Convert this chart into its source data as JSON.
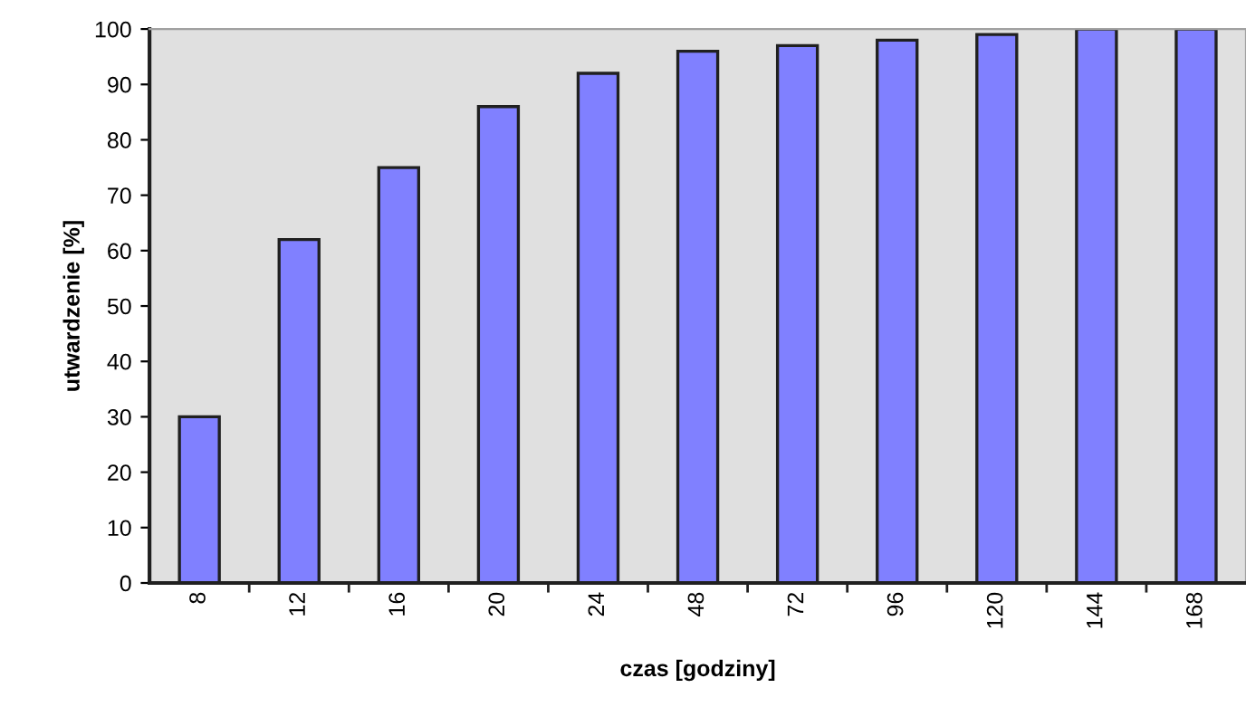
{
  "chart_data": {
    "type": "bar",
    "xlabel": "czas [godziny]",
    "ylabel": "utwardzenie [%]",
    "categories": [
      "8",
      "12",
      "16",
      "20",
      "24",
      "48",
      "72",
      "96",
      "120",
      "144",
      "168"
    ],
    "values": [
      30,
      62,
      75,
      86,
      92,
      96,
      97,
      98,
      99,
      100,
      100
    ],
    "color": "#8080ff",
    "ylim": [
      0,
      100
    ],
    "yticks": [
      0,
      10,
      20,
      30,
      40,
      50,
      60,
      70,
      80,
      90,
      100
    ],
    "grid": false,
    "legend": false
  }
}
